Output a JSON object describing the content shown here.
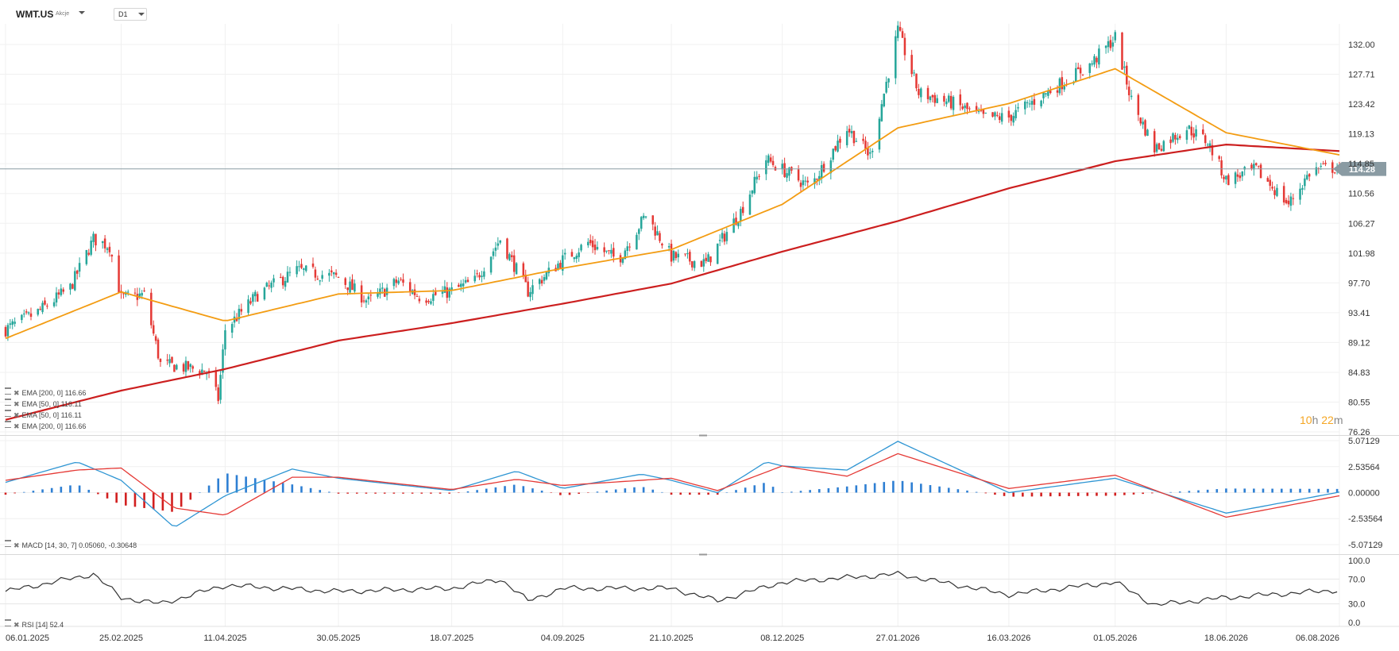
{
  "header": {
    "symbol": "WMT.US",
    "instrument_type": "Akcje",
    "timeframe": "D1"
  },
  "price_axis": {
    "labels": [
      "132.00",
      "127.71",
      "123.42",
      "119.13",
      "114.85",
      "110.56",
      "106.27",
      "101.98",
      "97.70",
      "93.41",
      "89.12",
      "84.83",
      "80.55",
      "76.26"
    ],
    "current_price": "114.28"
  },
  "macd_axis": {
    "labels": [
      "5.07129",
      "2.53564",
      "0.00000",
      "-2.53564",
      "-5.07129"
    ]
  },
  "rsi_axis": {
    "labels": [
      "100.0",
      "70.0",
      "30.0",
      "0.0"
    ]
  },
  "date_axis": {
    "labels": [
      "06.01.2025",
      "25.02.2025",
      "11.04.2025",
      "30.05.2025",
      "18.07.2025",
      "04.09.2025",
      "21.10.2025",
      "08.12.2025",
      "27.01.2026",
      "16.03.2026",
      "01.05.2026",
      "18.06.2026",
      "06.08.2026"
    ]
  },
  "legends": {
    "main": [
      "EMA [200, 0] 116.66",
      "EMA [50, 0] 116.11",
      "EMA [50, 0] 116.11",
      "EMA [200, 0] 116.66"
    ],
    "macd": "MACD [14, 30, 7] 0.05060, -0.30648",
    "rsi": "RSI [14] 52.4"
  },
  "countdown": {
    "hours": "10",
    "h_unit": "h",
    "minutes": "22",
    "m_unit": "m"
  },
  "colors": {
    "up": "#26a69a",
    "down": "#e53935",
    "ema50": "#f39c12",
    "ema200": "#cc1f1f",
    "macd_line": "#2e95d3",
    "signal_line": "#e53935",
    "hist_pos": "#2e7fd3",
    "hist_neg": "#d21f1f",
    "rsi_line": "#333333",
    "price_badge": "#8a9ba3"
  },
  "chart_data": {
    "type": "candlestick",
    "title": "",
    "x_labels": [
      "06.01.2025",
      "25.02.2025",
      "11.04.2025",
      "30.05.2025",
      "18.07.2025",
      "04.09.2025",
      "21.10.2025",
      "08.12.2025",
      "27.01.2026",
      "16.03.2026",
      "01.05.2026",
      "18.06.2026",
      "06.08.2026"
    ],
    "ylim": [
      76.26,
      132.0
    ],
    "last_close": 114.28,
    "close_series": [
      {
        "date": "06.01.2025",
        "close": 91.0
      },
      {
        "date": "20.01.2025",
        "close": 93.5
      },
      {
        "date": "03.02.2025",
        "close": 97.0
      },
      {
        "date": "13.02.2025",
        "close": 104.0
      },
      {
        "date": "20.02.2025",
        "close": 103.0
      },
      {
        "date": "25.02.2025",
        "close": 95.5
      },
      {
        "date": "07.03.2025",
        "close": 96.0
      },
      {
        "date": "14.03.2025",
        "close": 86.0
      },
      {
        "date": "25.03.2025",
        "close": 85.5
      },
      {
        "date": "03.04.2025",
        "close": 85.0
      },
      {
        "date": "08.04.2025",
        "close": 81.0
      },
      {
        "date": "11.04.2025",
        "close": 91.0
      },
      {
        "date": "25.04.2025",
        "close": 96.0
      },
      {
        "date": "12.05.2025",
        "close": 99.5
      },
      {
        "date": "30.05.2025",
        "close": 98.5
      },
      {
        "date": "12.06.2025",
        "close": 95.0
      },
      {
        "date": "25.06.2025",
        "close": 98.0
      },
      {
        "date": "05.07.2025",
        "close": 95.5
      },
      {
        "date": "18.07.2025",
        "close": 96.5
      },
      {
        "date": "28.07.2025",
        "close": 98.0
      },
      {
        "date": "08.08.2025",
        "close": 104.0
      },
      {
        "date": "20.08.2025",
        "close": 96.5
      },
      {
        "date": "04.09.2025",
        "close": 101.0
      },
      {
        "date": "15.09.2025",
        "close": 103.5
      },
      {
        "date": "28.09.2025",
        "close": 101.0
      },
      {
        "date": "10.10.2025",
        "close": 107.5
      },
      {
        "date": "21.10.2025",
        "close": 101.5
      },
      {
        "date": "05.11.2025",
        "close": 100.5
      },
      {
        "date": "20.11.2025",
        "close": 108.0
      },
      {
        "date": "01.12.2025",
        "close": 115.5
      },
      {
        "date": "08.12.2025",
        "close": 114.0
      },
      {
        "date": "20.12.2025",
        "close": 111.5
      },
      {
        "date": "05.01.2026",
        "close": 120.0
      },
      {
        "date": "15.01.2026",
        "close": 116.0
      },
      {
        "date": "27.01.2026",
        "close": 134.0
      },
      {
        "date": "05.02.2026",
        "close": 125.0
      },
      {
        "date": "20.02.2026",
        "close": 123.5
      },
      {
        "date": "05.03.2026",
        "close": 121.5
      },
      {
        "date": "16.03.2026",
        "close": 121.5
      },
      {
        "date": "01.04.2026",
        "close": 125.0
      },
      {
        "date": "20.04.2026",
        "close": 129.0
      },
      {
        "date": "01.05.2026",
        "close": 133.0
      },
      {
        "date": "08.05.2026",
        "close": 124.0
      },
      {
        "date": "18.05.2026",
        "close": 117.0
      },
      {
        "date": "01.06.2026",
        "close": 120.0
      },
      {
        "date": "10.06.2026",
        "close": 118.0
      },
      {
        "date": "18.06.2026",
        "close": 112.5
      },
      {
        "date": "01.07.2026",
        "close": 114.0
      },
      {
        "date": "15.07.2026",
        "close": 109.0
      },
      {
        "date": "25.07.2026",
        "close": 114.0
      },
      {
        "date": "06.08.2026",
        "close": 114.3
      }
    ],
    "series": [
      {
        "name": "EMA [200, 0]",
        "last": 116.66,
        "points": [
          {
            "date": "06.01.2025",
            "value": 78.0
          },
          {
            "date": "25.02.2025",
            "value": 82.2
          },
          {
            "date": "11.04.2025",
            "value": 85.3
          },
          {
            "date": "30.05.2025",
            "value": 89.4
          },
          {
            "date": "18.07.2025",
            "value": 91.9
          },
          {
            "date": "04.09.2025",
            "value": 94.7
          },
          {
            "date": "21.10.2025",
            "value": 97.6
          },
          {
            "date": "08.12.2025",
            "value": 102.2
          },
          {
            "date": "27.01.2026",
            "value": 106.6
          },
          {
            "date": "16.03.2026",
            "value": 111.3
          },
          {
            "date": "01.05.2026",
            "value": 115.2
          },
          {
            "date": "18.06.2026",
            "value": 117.6
          },
          {
            "date": "06.08.2026",
            "value": 116.66
          }
        ]
      },
      {
        "name": "EMA [50, 0]",
        "last": 116.11,
        "points": [
          {
            "date": "06.01.2025",
            "value": 89.7
          },
          {
            "date": "25.02.2025",
            "value": 96.4
          },
          {
            "date": "11.04.2025",
            "value": 92.2
          },
          {
            "date": "30.05.2025",
            "value": 96.1
          },
          {
            "date": "18.07.2025",
            "value": 96.6
          },
          {
            "date": "04.09.2025",
            "value": 99.8
          },
          {
            "date": "21.10.2025",
            "value": 102.5
          },
          {
            "date": "08.12.2025",
            "value": 109.0
          },
          {
            "date": "27.01.2026",
            "value": 120.0
          },
          {
            "date": "16.03.2026",
            "value": 123.5
          },
          {
            "date": "01.05.2026",
            "value": 128.5
          },
          {
            "date": "18.06.2026",
            "value": 119.3
          },
          {
            "date": "06.08.2026",
            "value": 116.11
          }
        ]
      }
    ],
    "macd": {
      "params": "14, 30, 7",
      "macd_last": 0.0506,
      "signal_last": -0.30648,
      "ylim": [
        -5.07129,
        5.07129
      ],
      "points": [
        {
          "date": "06.01.2025",
          "macd": 1.0,
          "signal": 1.2
        },
        {
          "date": "06.02.2025",
          "macd": 3.0,
          "signal": 2.2
        },
        {
          "date": "25.02.2025",
          "macd": 1.2,
          "signal": 2.4
        },
        {
          "date": "20.03.2025",
          "macd": -3.4,
          "signal": -1.5
        },
        {
          "date": "11.04.2025",
          "macd": -0.3,
          "signal": -2.2
        },
        {
          "date": "10.05.2025",
          "macd": 2.3,
          "signal": 1.5
        },
        {
          "date": "30.05.2025",
          "macd": 1.4,
          "signal": 1.5
        },
        {
          "date": "18.07.2025",
          "macd": 0.2,
          "signal": 0.3
        },
        {
          "date": "15.08.2025",
          "macd": 2.1,
          "signal": 1.3
        },
        {
          "date": "04.09.2025",
          "macd": 0.4,
          "signal": 0.7
        },
        {
          "date": "08.10.2025",
          "macd": 1.8,
          "signal": 1.2
        },
        {
          "date": "21.10.2025",
          "macd": 1.2,
          "signal": 1.4
        },
        {
          "date": "10.11.2025",
          "macd": 0.0,
          "signal": 0.2
        },
        {
          "date": "01.12.2025",
          "macd": 3.0,
          "signal": 2.0
        },
        {
          "date": "08.12.2025",
          "macd": 2.6,
          "signal": 2.6
        },
        {
          "date": "05.01.2026",
          "macd": 2.2,
          "signal": 1.6
        },
        {
          "date": "27.01.2026",
          "macd": 5.0,
          "signal": 3.8
        },
        {
          "date": "16.03.2026",
          "macd": 0.0,
          "signal": 0.4
        },
        {
          "date": "01.05.2026",
          "macd": 1.4,
          "signal": 1.7
        },
        {
          "date": "18.06.2026",
          "macd": -2.0,
          "signal": -2.4
        },
        {
          "date": "06.08.2026",
          "macd": 0.0506,
          "signal": -0.30648
        }
      ]
    },
    "rsi": {
      "period": 14,
      "last": 52.4,
      "ylim": [
        0,
        100
      ],
      "levels": [
        70.0,
        30.0
      ],
      "points": [
        {
          "date": "06.01.2025",
          "value": 50
        },
        {
          "date": "13.02.2025",
          "value": 78
        },
        {
          "date": "25.02.2025",
          "value": 40
        },
        {
          "date": "14.03.2025",
          "value": 30
        },
        {
          "date": "11.04.2025",
          "value": 60
        },
        {
          "date": "30.05.2025",
          "value": 50
        },
        {
          "date": "18.07.2025",
          "value": 55
        },
        {
          "date": "08.08.2025",
          "value": 70
        },
        {
          "date": "20.08.2025",
          "value": 35
        },
        {
          "date": "04.09.2025",
          "value": 55
        },
        {
          "date": "21.10.2025",
          "value": 55
        },
        {
          "date": "10.11.2025",
          "value": 35
        },
        {
          "date": "08.12.2025",
          "value": 65
        },
        {
          "date": "27.01.2026",
          "value": 78
        },
        {
          "date": "16.03.2026",
          "value": 45
        },
        {
          "date": "01.05.2026",
          "value": 65
        },
        {
          "date": "18.05.2026",
          "value": 28
        },
        {
          "date": "18.06.2026",
          "value": 40
        },
        {
          "date": "06.08.2026",
          "value": 52.4
        }
      ]
    }
  }
}
